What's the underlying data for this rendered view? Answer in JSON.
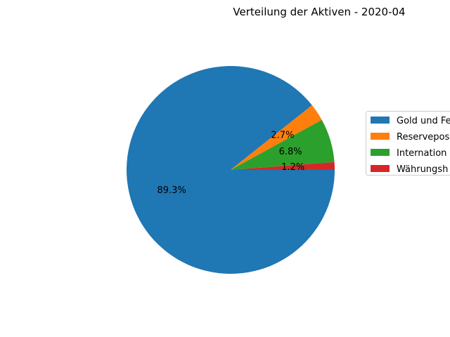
{
  "chart_data": {
    "type": "pie",
    "title": "Verteilung der Aktiven - 2020-04",
    "slices": [
      {
        "label": "Gold und Fe",
        "value": 89.3,
        "pct_label": "89.3%",
        "color": "#1f77b4"
      },
      {
        "label": "Reservepos",
        "value": 2.7,
        "pct_label": "2.7%",
        "color": "#ff7f0e"
      },
      {
        "label": "Internation",
        "value": 6.8,
        "pct_label": "6.8%",
        "color": "#2ca02c"
      },
      {
        "label": "Währungsh",
        "value": 1.2,
        "pct_label": "1.2%",
        "color": "#d62728"
      }
    ],
    "start_angle_deg": 0,
    "direction": "clockwise-on-screen",
    "legend_position": "right (clipped)"
  }
}
